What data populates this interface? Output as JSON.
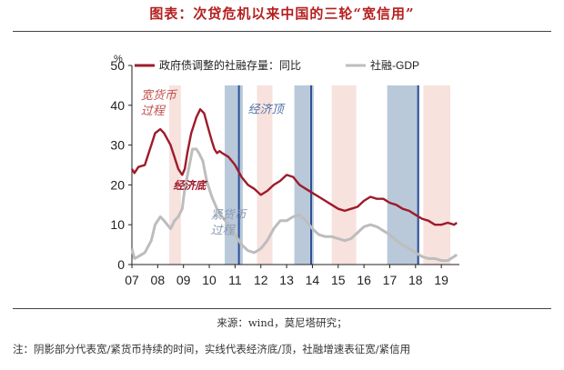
{
  "page": {
    "title": "图表：次贷危机以来中国的三轮“宽信用”",
    "source": "来源：wind，莫尼塔研究；",
    "note": "注：阴影部分代表宽/紧货币持续的时间，实线代表经济底/顶，社融增速表征宽/紧信用"
  },
  "colors": {
    "series1": "#9e1b2a",
    "series2": "#bdbdbd",
    "pink_band": "#f7e2de",
    "blue_band": "#b9c9da",
    "line_marker": "#2f4f9a",
    "annotation_red": "#c0504d",
    "annotation_blue": "#4f6fa8",
    "annotation_gray": "#8a9bb0"
  },
  "chart_data": {
    "type": "line",
    "title": "",
    "xlabel": "",
    "ylabel": "%",
    "ylim": [
      0,
      50
    ],
    "yticks": [
      "0",
      "10",
      "20",
      "30",
      "40",
      "50"
    ],
    "xlim": [
      2007.0,
      2019.7
    ],
    "xticks": [
      {
        "label": "07",
        "x": 2007.0
      },
      {
        "label": "08",
        "x": 2008.0
      },
      {
        "label": "09",
        "x": 2009.0
      },
      {
        "label": "10",
        "x": 2010.0
      },
      {
        "label": "11",
        "x": 2011.0
      },
      {
        "label": "12",
        "x": 2012.0
      },
      {
        "label": "13",
        "x": 2013.0
      },
      {
        "label": "14",
        "x": 2014.0
      },
      {
        "label": "15",
        "x": 2015.0
      },
      {
        "label": "16",
        "x": 2016.0
      },
      {
        "label": "17",
        "x": 2017.0
      },
      {
        "label": "18",
        "x": 2018.0
      },
      {
        "label": "19",
        "x": 2019.0
      }
    ],
    "legend": [
      {
        "label": "政府债调整的社融存量：同比",
        "series": 0
      },
      {
        "label": "社融-GDP",
        "series": 1
      }
    ],
    "series": [
      {
        "name": "政府债调整的社融存量：同比",
        "x": [
          2007.0,
          2007.1,
          2007.25,
          2007.5,
          2007.75,
          2007.9,
          2008.1,
          2008.25,
          2008.5,
          2008.65,
          2008.8,
          2008.95,
          2009.05,
          2009.15,
          2009.3,
          2009.5,
          2009.65,
          2009.8,
          2009.95,
          2010.1,
          2010.2,
          2010.3,
          2010.4,
          2010.5,
          2010.75,
          2011.0,
          2011.25,
          2011.5,
          2011.75,
          2012.0,
          2012.25,
          2012.5,
          2012.75,
          2013.0,
          2013.25,
          2013.5,
          2013.75,
          2014.0,
          2014.25,
          2014.5,
          2014.75,
          2015.0,
          2015.25,
          2015.5,
          2015.75,
          2016.0,
          2016.25,
          2016.5,
          2016.75,
          2017.0,
          2017.25,
          2017.5,
          2017.75,
          2018.0,
          2018.25,
          2018.5,
          2018.75,
          2019.0,
          2019.25,
          2019.5,
          2019.6
        ],
        "values": [
          24,
          23,
          24.5,
          25,
          30,
          33,
          34,
          33,
          30,
          27,
          24,
          22.5,
          24,
          28,
          33,
          37,
          39,
          38,
          34.5,
          31,
          29,
          28,
          28.5,
          28,
          27,
          25,
          22,
          20,
          19,
          17.5,
          18.5,
          20,
          21,
          22.5,
          22,
          20,
          19,
          18,
          17,
          16,
          15,
          14,
          13.5,
          14,
          14.5,
          16,
          17,
          16.5,
          16.5,
          15.5,
          15,
          14,
          13.5,
          12.5,
          11.5,
          11,
          10,
          10,
          10.5,
          10,
          10.5
        ]
      },
      {
        "name": "社融-GDP",
        "x": [
          2007.0,
          2007.1,
          2007.25,
          2007.5,
          2007.75,
          2007.9,
          2008.1,
          2008.25,
          2008.5,
          2008.65,
          2008.8,
          2008.95,
          2009.05,
          2009.2,
          2009.35,
          2009.5,
          2009.6,
          2009.75,
          2009.9,
          2010.1,
          2010.3,
          2010.5,
          2010.75,
          2011.0,
          2011.25,
          2011.5,
          2011.75,
          2012.0,
          2012.25,
          2012.5,
          2012.75,
          2013.0,
          2013.25,
          2013.5,
          2013.75,
          2014.0,
          2014.25,
          2014.5,
          2014.75,
          2015.0,
          2015.25,
          2015.5,
          2015.75,
          2016.0,
          2016.25,
          2016.5,
          2016.75,
          2017.0,
          2017.25,
          2017.5,
          2017.75,
          2018.0,
          2018.25,
          2018.5,
          2018.75,
          2019.0,
          2019.25,
          2019.5,
          2019.6
        ],
        "values": [
          4,
          1.5,
          2,
          3,
          6,
          10,
          12,
          11,
          9,
          11,
          12,
          14,
          19,
          24,
          29,
          29,
          28,
          26,
          21,
          17,
          14,
          12,
          10,
          7.5,
          5,
          3.5,
          3,
          4,
          6,
          9,
          11,
          11,
          12,
          12.5,
          11,
          9,
          7.5,
          7,
          7,
          6.5,
          6,
          6.5,
          8,
          9.5,
          10,
          9.5,
          8.5,
          7.5,
          6,
          5,
          4,
          3,
          2,
          1.5,
          1.5,
          1,
          1,
          2,
          2.5
        ]
      }
    ],
    "shaded_periods": [
      {
        "kind": "宽货币",
        "start": 2008.45,
        "end": 2008.9
      },
      {
        "kind": "紧货币",
        "start": 2010.6,
        "end": 2011.3
      },
      {
        "kind": "宽货币",
        "start": 2011.85,
        "end": 2012.45
      },
      {
        "kind": "紧货币",
        "start": 2013.3,
        "end": 2014.05
      },
      {
        "kind": "宽货币",
        "start": 2014.75,
        "end": 2015.7
      },
      {
        "kind": "紧货币",
        "start": 2016.9,
        "end": 2018.15
      },
      {
        "kind": "宽货币",
        "start": 2018.3,
        "end": 2019.35
      }
    ],
    "vertical_lines": [
      {
        "kind": "经济顶",
        "x": 2011.15
      },
      {
        "kind": "经济顶",
        "x": 2013.95
      },
      {
        "kind": "经济顶",
        "x": 2018.1
      }
    ],
    "annotations": [
      {
        "lines": [
          "宽货币",
          "过程"
        ],
        "x": 2007.35,
        "y": 41.5,
        "style": "red"
      },
      {
        "lines": [
          "经济底"
        ],
        "x": 2008.6,
        "y": 19.0,
        "style": "bold"
      },
      {
        "lines": [
          "紧货币",
          "过程"
        ],
        "x": 2010.05,
        "y": 11.5,
        "style": "gray"
      },
      {
        "lines": [
          "经济顶"
        ],
        "x": 2011.5,
        "y": 38.0,
        "style": "blue"
      }
    ]
  }
}
